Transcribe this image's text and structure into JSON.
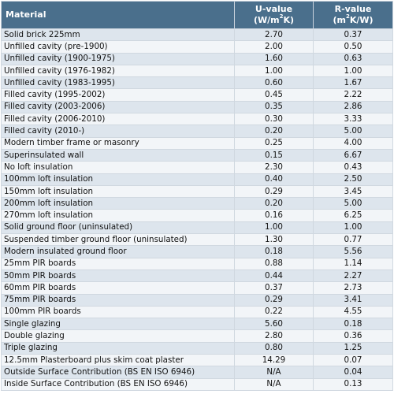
{
  "header": {
    "material": "Material",
    "u_value_line1": "U-value",
    "u_value_line2_pre": "(W/m",
    "u_value_line2_sup": "2",
    "u_value_line2_post": "K)",
    "r_value_line1": "R-value",
    "r_value_line2_pre": "(m",
    "r_value_line2_sup": "2",
    "r_value_line2_post": "K/W)"
  },
  "rows": [
    {
      "material": "Solid brick 225mm",
      "u": "2.70",
      "r": "0.37"
    },
    {
      "material": "Unfilled cavity (pre-1900)",
      "u": "2.00",
      "r": "0.50"
    },
    {
      "material": "Unfilled cavity (1900-1975)",
      "u": "1.60",
      "r": "0.63"
    },
    {
      "material": "Unfilled cavity (1976-1982)",
      "u": "1.00",
      "r": "1.00"
    },
    {
      "material": "Unfilled cavity (1983-1995)",
      "u": "0.60",
      "r": "1.67"
    },
    {
      "material": "Filled cavity (1995-2002)",
      "u": "0.45",
      "r": "2.22"
    },
    {
      "material": "Filled cavity (2003-2006)",
      "u": "0.35",
      "r": "2.86"
    },
    {
      "material": "Filled cavity (2006-2010)",
      "u": "0.30",
      "r": "3.33"
    },
    {
      "material": "Filled cavity (2010-)",
      "u": "0.20",
      "r": "5.00"
    },
    {
      "material": "Modern timber frame or masonry",
      "u": "0.25",
      "r": "4.00"
    },
    {
      "material": "Superinsulated wall",
      "u": "0.15",
      "r": "6.67"
    },
    {
      "material": "No loft insulation",
      "u": "2.30",
      "r": "0.43"
    },
    {
      "material": "100mm loft insulation",
      "u": "0.40",
      "r": "2.50"
    },
    {
      "material": "150mm loft insulation",
      "u": "0.29",
      "r": "3.45"
    },
    {
      "material": "200mm loft insulation",
      "u": "0.20",
      "r": "5.00"
    },
    {
      "material": "270mm loft insulation",
      "u": "0.16",
      "r": "6.25"
    },
    {
      "material": "Solid ground floor (uninsulated)",
      "u": "1.00",
      "r": "1.00"
    },
    {
      "material": "Suspended timber ground floor (uninsulated)",
      "u": "1.30",
      "r": "0.77"
    },
    {
      "material": "Modern insulated ground floor",
      "u": "0.18",
      "r": "5.56"
    },
    {
      "material": "25mm PIR boards",
      "u": "0.88",
      "r": "1.14"
    },
    {
      "material": "50mm PIR boards",
      "u": "0.44",
      "r": "2.27"
    },
    {
      "material": "60mm PIR boards",
      "u": "0.37",
      "r": "2.73"
    },
    {
      "material": "75mm PIR boards",
      "u": "0.29",
      "r": "3.41"
    },
    {
      "material": "100mm PIR boards",
      "u": "0.22",
      "r": "4.55"
    },
    {
      "material": "Single glazing",
      "u": "5.60",
      "r": "0.18"
    },
    {
      "material": "Double glazing",
      "u": "2.80",
      "r": "0.36"
    },
    {
      "material": "Triple glazing",
      "u": "0.80",
      "r": "1.25"
    },
    {
      "material": "12.5mm Plasterboard plus skim coat plaster",
      "u": "14.29",
      "r": "0.07"
    },
    {
      "material": "Outside Surface Contribution (BS EN ISO 6946)",
      "u": "N/A",
      "r": "0.04"
    },
    {
      "material": "Inside Surface Contribution (BS EN ISO 6946)",
      "u": "N/A",
      "r": "0.13"
    }
  ],
  "colors": {
    "header_bg": "#4a6f8c",
    "row_odd": "#dde5ed",
    "row_even": "#f2f5f8"
  }
}
